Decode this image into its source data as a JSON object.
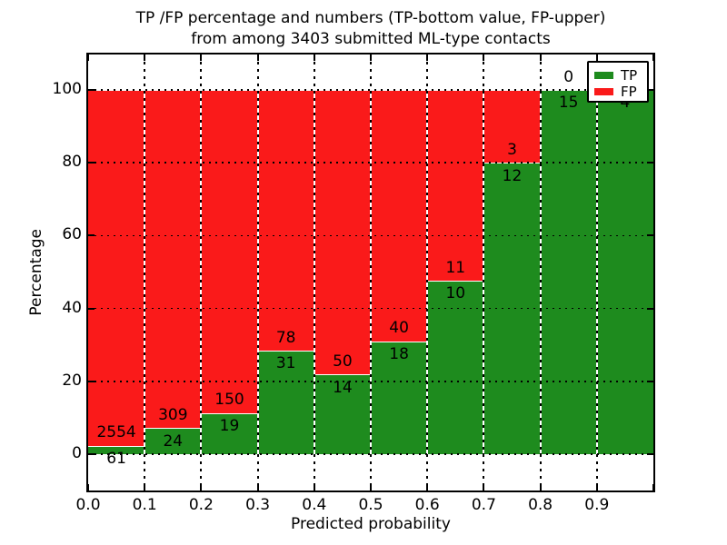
{
  "figure": {
    "title_line1": "TP /FP percentage and numbers (TP-bottom value, FP-upper)",
    "title_line2": "from among 3403 submitted ML-type contacts"
  },
  "axes": {
    "xlabel": "Predicted probability",
    "ylabel": "Percentage",
    "xtick_labels": [
      "0.0",
      "0.1",
      "0.2",
      "0.3",
      "0.4",
      "0.5",
      "0.6",
      "0.7",
      "0.8",
      "0.9"
    ],
    "ytick_labels": [
      "0",
      "20",
      "40",
      "60",
      "80",
      "100"
    ]
  },
  "legend": {
    "position": "upper right",
    "items": [
      {
        "label": "TP",
        "color": "#1e8b1e"
      },
      {
        "label": "FP",
        "color": "#fa1a1a"
      }
    ]
  },
  "colors": {
    "tp": "#1e8b1e",
    "fp": "#fa1a1a",
    "background": "#ffffff",
    "grid": "#000000"
  },
  "chart_data": {
    "type": "bar",
    "stacked": true,
    "normalization": "each 0.1-wide bin scaled to 100 percent (TP bottom, FP top)",
    "title": "TP /FP percentage and numbers (TP-bottom value, FP-upper) from among 3403 submitted ML-type contacts",
    "xlabel": "Predicted probability",
    "ylabel": "Percentage",
    "total_contacts": 3403,
    "bin_width": 0.1,
    "bin_starts": [
      0.0,
      0.1,
      0.2,
      0.3,
      0.4,
      0.5,
      0.6,
      0.7,
      0.8,
      0.9
    ],
    "series": [
      {
        "name": "TP",
        "color": "#1e8b1e",
        "counts": [
          61,
          24,
          19,
          31,
          14,
          18,
          10,
          12,
          15,
          4
        ]
      },
      {
        "name": "FP",
        "color": "#fa1a1a",
        "counts": [
          2554,
          309,
          150,
          78,
          50,
          40,
          11,
          3,
          0,
          0
        ]
      }
    ],
    "yticks": [
      0,
      20,
      40,
      60,
      80,
      100
    ],
    "ylim": [
      -10,
      110
    ],
    "xlim": [
      0.0,
      1.0
    ],
    "grid": true,
    "legend_position": "upper right",
    "bar_label_rule": "FP count printed just above the TP/FP boundary, TP count just below it",
    "hidden_labels": "FP label of the 0.9-1.0 bin is covered by the legend box"
  }
}
